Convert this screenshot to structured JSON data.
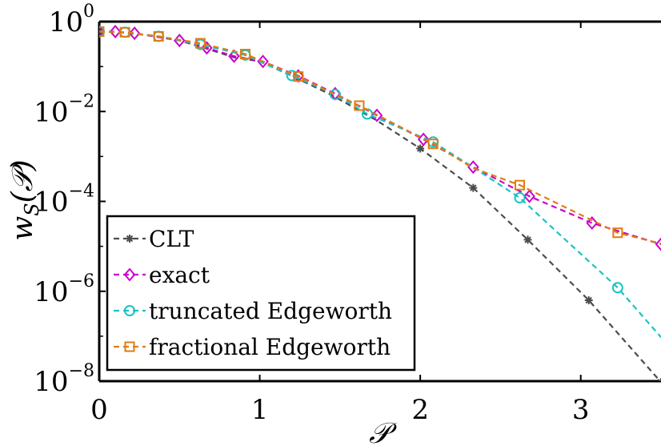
{
  "chart_data": {
    "type": "line",
    "xlabel": "𝒫",
    "ylabel": "w_S(𝒫)",
    "ylabel_main": "w",
    "ylabel_sub": "S",
    "ylabel_arg": "(𝒫)",
    "xlim": [
      0,
      3.5
    ],
    "ylim": [
      1e-08,
      1
    ],
    "yscale": "log",
    "grid": false,
    "legend_position": "bottom-left",
    "x_ticks": [
      {
        "value": 0,
        "label": "0"
      },
      {
        "value": 1,
        "label": "1"
      },
      {
        "value": 2,
        "label": "2"
      },
      {
        "value": 3,
        "label": "3"
      }
    ],
    "y_ticks": [
      {
        "value": 1,
        "base": "10",
        "exp": "0"
      },
      {
        "value": 0.01,
        "base": "10",
        "exp": "−2"
      },
      {
        "value": 0.0001,
        "base": "10",
        "exp": "−4"
      },
      {
        "value": 1e-06,
        "base": "10",
        "exp": "−6"
      },
      {
        "value": 1e-08,
        "base": "10",
        "exp": "−8"
      }
    ],
    "series": [
      {
        "name": "CLT",
        "color": "#4d4d4d",
        "marker": "asterisk",
        "x": [
          0,
          0.13,
          0.3,
          0.5,
          0.67,
          0.84,
          1.0,
          1.2,
          1.45,
          1.73,
          2.0,
          2.33,
          2.67,
          3.05,
          3.5
        ],
        "y": [
          0.6,
          0.58,
          0.5,
          0.38,
          0.25,
          0.16,
          0.13,
          0.062,
          0.023,
          0.0063,
          0.0015,
          0.0002,
          1.4e-05,
          6.3e-07,
          9.5e-09
        ],
        "markers_x": [
          0,
          2.0,
          2.33,
          2.67,
          3.05,
          3.5
        ],
        "markers_y": [
          0.6,
          0.0015,
          0.0002,
          1.4e-05,
          6.3e-07,
          9.5e-09
        ]
      },
      {
        "name": "exact",
        "color": "#cc00cc",
        "marker": "diamond",
        "x": [
          0,
          0.1,
          0.22,
          0.5,
          0.67,
          0.84,
          1.02,
          1.24,
          1.47,
          1.73,
          2.02,
          2.33,
          2.68,
          3.07,
          3.5
        ],
        "y": [
          0.6,
          0.6,
          0.55,
          0.38,
          0.26,
          0.17,
          0.13,
          0.062,
          0.025,
          0.0082,
          0.0024,
          0.00058,
          0.00013,
          3.3e-05,
          1.11e-05
        ],
        "markers_x": [
          0,
          0.1,
          0.22,
          0.5,
          0.67,
          0.84,
          1.02,
          1.24,
          1.47,
          1.73,
          2.02,
          2.33,
          2.68,
          3.07,
          3.5
        ],
        "markers_y": [
          0.6,
          0.6,
          0.55,
          0.38,
          0.26,
          0.17,
          0.13,
          0.062,
          0.025,
          0.0082,
          0.0024,
          0.00058,
          0.00013,
          3.3e-05,
          1.11e-05
        ]
      },
      {
        "name": "truncated Edgeworth",
        "color": "#19c3c3",
        "marker": "circle",
        "x": [
          0,
          0.16,
          0.37,
          0.63,
          0.91,
          1.2,
          1.47,
          1.67,
          2.08,
          2.33,
          2.62,
          3.23,
          3.5
        ],
        "y": [
          0.6,
          0.58,
          0.47,
          0.31,
          0.18,
          0.063,
          0.024,
          0.0088,
          0.0021,
          0.00057,
          0.00012,
          1.2e-06,
          9.5e-08
        ],
        "markers_x": [
          0,
          0.16,
          0.37,
          0.63,
          0.91,
          1.2,
          1.47,
          1.67,
          2.08,
          2.62,
          3.23
        ],
        "markers_y": [
          0.6,
          0.58,
          0.47,
          0.31,
          0.18,
          0.063,
          0.024,
          0.0088,
          0.0021,
          0.00012,
          1.2e-06
        ]
      },
      {
        "name": "fractional Edgeworth",
        "color": "#e07c10",
        "marker": "square",
        "x": [
          0,
          0.16,
          0.37,
          0.63,
          0.91,
          1.02,
          1.24,
          1.47,
          1.62,
          2.08,
          2.33,
          2.62,
          3.23,
          3.5
        ],
        "y": [
          0.6,
          0.58,
          0.47,
          0.33,
          0.19,
          0.13,
          0.06,
          0.024,
          0.0135,
          0.0019,
          0.00055,
          0.00023,
          2e-05,
          1.15e-05
        ],
        "markers_x": [
          0,
          0.16,
          0.37,
          0.63,
          0.91,
          1.24,
          1.62,
          2.08,
          2.62,
          3.23
        ],
        "markers_y": [
          0.6,
          0.58,
          0.47,
          0.33,
          0.19,
          0.06,
          0.0135,
          0.0019,
          0.00023,
          2e-05
        ]
      }
    ]
  }
}
